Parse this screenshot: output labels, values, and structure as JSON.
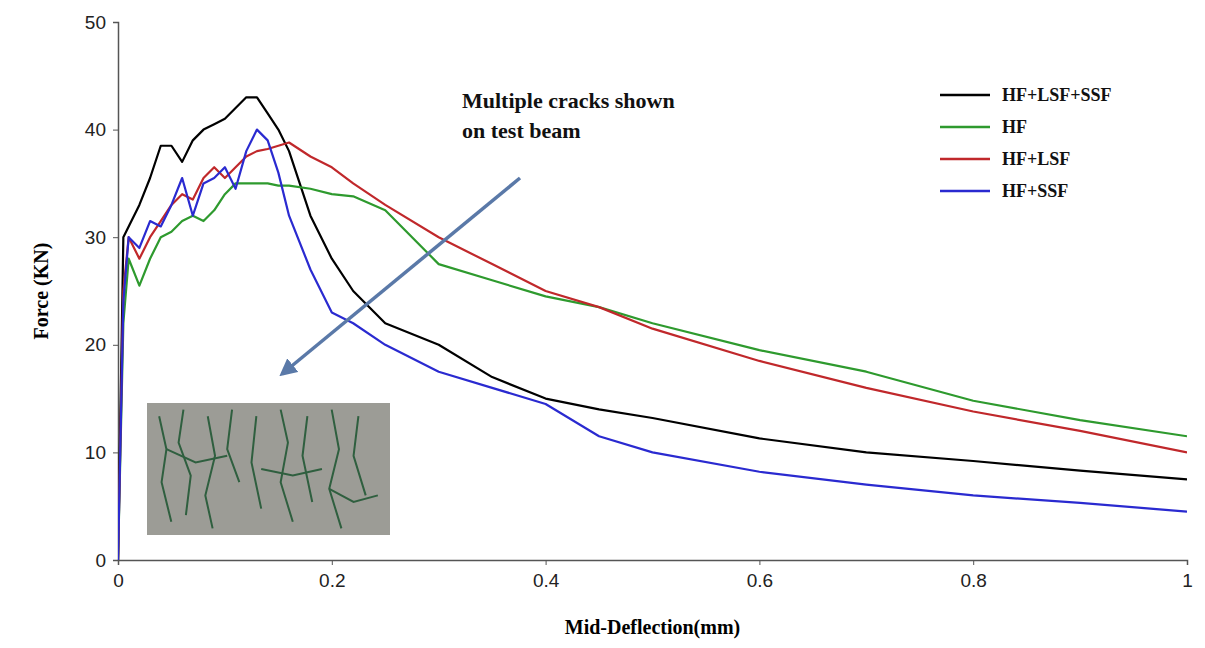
{
  "chart_data": {
    "type": "line",
    "x_label": "Mid-Deflection(mm)",
    "y_label": "Force (KN)",
    "annotations": [
      "Multiple cracks shown",
      "on test beam"
    ],
    "x": [
      0,
      0.005,
      0.01,
      0.02,
      0.03,
      0.04,
      0.05,
      0.06,
      0.07,
      0.08,
      0.09,
      0.1,
      0.11,
      0.12,
      0.13,
      0.14,
      0.15,
      0.16,
      0.18,
      0.2,
      0.22,
      0.25,
      0.3,
      0.35,
      0.4,
      0.45,
      0.5,
      0.6,
      0.7,
      0.8,
      0.9,
      1.0
    ],
    "series": [
      {
        "name": "HF+LSF+SSF",
        "color": "#000000",
        "values": [
          0,
          30,
          31,
          33,
          35.5,
          38.5,
          38.5,
          37,
          39,
          40,
          40.5,
          41,
          42,
          43,
          43,
          41.5,
          40,
          38,
          32,
          28,
          25,
          22,
          20,
          17,
          15,
          14,
          13.2,
          11.3,
          10,
          9.2,
          8.3,
          7.5
        ]
      },
      {
        "name": "HF",
        "color": "#2e9a2e",
        "values": [
          0,
          22,
          28,
          25.5,
          28,
          30,
          30.5,
          31.5,
          32,
          31.5,
          32.5,
          34,
          35,
          35,
          35,
          35,
          34.8,
          34.8,
          34.5,
          34,
          33.8,
          32.5,
          27.5,
          26,
          24.5,
          23.5,
          22,
          19.5,
          17.5,
          14.8,
          13,
          11.5
        ]
      },
      {
        "name": "HF+LSF",
        "color": "#c0282b",
        "values": [
          0,
          25,
          30,
          28,
          30,
          31.5,
          33,
          34,
          33.5,
          35.5,
          36.5,
          35.5,
          36.5,
          37.5,
          38,
          38.2,
          38.5,
          38.8,
          37.5,
          36.5,
          35,
          33,
          30,
          27.5,
          25,
          23.5,
          21.5,
          18.5,
          16,
          13.8,
          12,
          10
        ]
      },
      {
        "name": "HF+SSF",
        "color": "#2a2ad0",
        "values": [
          0,
          24,
          30,
          29,
          31.5,
          31,
          33,
          35.5,
          32,
          35,
          35.5,
          36.5,
          34.5,
          38,
          40,
          39,
          36,
          32,
          27,
          23,
          22,
          20,
          17.5,
          16,
          14.5,
          11.5,
          10,
          8.2,
          7,
          6,
          5.3,
          4.5
        ]
      }
    ],
    "xlim": [
      0,
      1
    ],
    "ylim": [
      0,
      50
    ],
    "xticks": [
      0,
      0.2,
      0.4,
      0.6,
      0.8,
      1
    ],
    "yticks": [
      0,
      10,
      20,
      30,
      40,
      50
    ],
    "legend": "top-right",
    "grid": false
  }
}
